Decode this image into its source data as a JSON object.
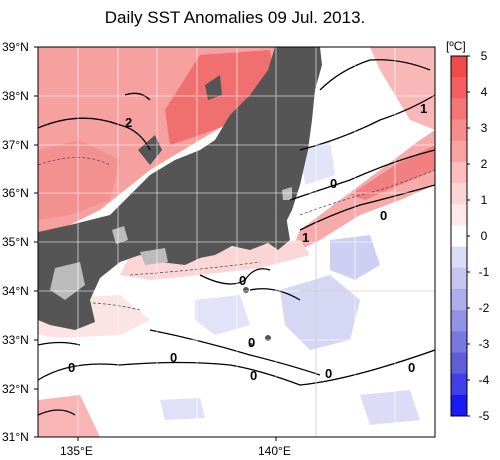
{
  "title": "Daily SST Anomalies 09 Jul. 2013.",
  "map": {
    "lat_labels": [
      "39°N",
      "38°N",
      "37°N",
      "36°N",
      "35°N",
      "34°N",
      "33°N",
      "32°N",
      "31°N"
    ],
    "lon_labels": [
      "135°E",
      "140°E"
    ],
    "extent": {
      "lon": [
        134,
        144
      ],
      "lat": [
        31,
        39
      ]
    }
  },
  "colorbar": {
    "unit": "[ºC]",
    "ticks": [
      "5",
      "4",
      "3",
      "2",
      "1",
      "0",
      "-1",
      "-2",
      "-3",
      "-4",
      "-5"
    ],
    "colors_warm": [
      "#f24a4a",
      "#f45f5f",
      "#f67575",
      "#f88b8b",
      "#faa3a3",
      "#fcbdbd",
      "#fdd5d5",
      "#feeaea",
      "#ffffff"
    ],
    "colors_cold": [
      "#eeeefc",
      "#dcdcf7",
      "#c6c6f2",
      "#adadec",
      "#9393e6",
      "#7878e0",
      "#5e5edb",
      "#4040e6",
      "#1a1af5"
    ],
    "land_color": "#555555"
  },
  "contour_labels": [
    "2",
    "1",
    "0",
    "0",
    "1",
    "0",
    "0",
    "0",
    "0",
    "0",
    "0",
    "0"
  ]
}
